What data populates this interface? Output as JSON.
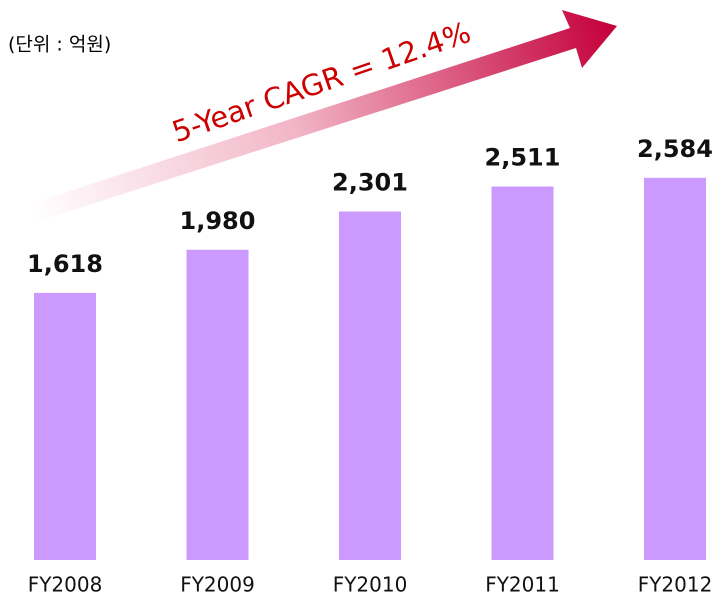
{
  "chart_data": {
    "type": "bar",
    "subtitle": "(단위 : 억원)",
    "annotation": "5-Year CAGR = 12.4%",
    "categories": [
      "FY2008",
      "FY2009",
      "FY2010",
      "FY2011",
      "FY2012"
    ],
    "values": [
      1618,
      1980,
      2301,
      2511,
      2584
    ],
    "value_labels": [
      "1,618",
      "1,980",
      "2,301",
      "2,511",
      "2,584"
    ],
    "color": "#cc99ff",
    "ylim": [
      -625,
      2700
    ]
  }
}
